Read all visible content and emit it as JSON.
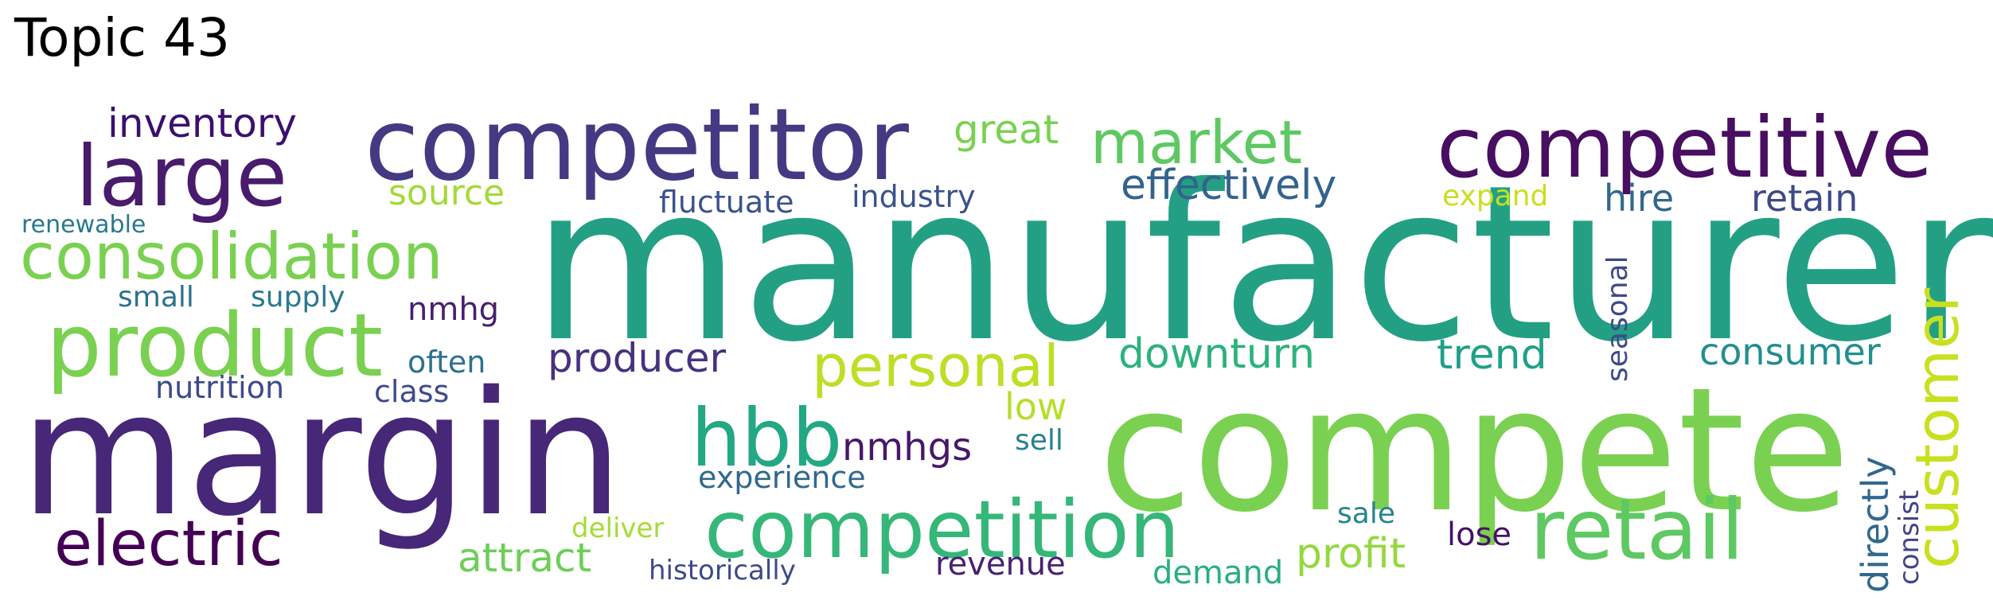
{
  "title": "Topic 43",
  "words": [
    {
      "text": "manufacturer",
      "color": "#23a083"
    },
    {
      "text": "compete",
      "color": "#7ad151"
    },
    {
      "text": "margin",
      "color": "#472778"
    },
    {
      "text": "competitor",
      "color": "#443a83"
    },
    {
      "text": "competitive",
      "color": "#470e61"
    },
    {
      "text": "product",
      "color": "#7ad151"
    },
    {
      "text": "large",
      "color": "#481b6d"
    },
    {
      "text": "consolidation",
      "color": "#7ad151"
    },
    {
      "text": "competition",
      "color": "#35b779"
    },
    {
      "text": "retail",
      "color": "#5ec962"
    },
    {
      "text": "customer",
      "color": "#c8e020"
    },
    {
      "text": "electric",
      "color": "#440154"
    },
    {
      "text": "hbb",
      "color": "#22a884"
    },
    {
      "text": "market",
      "color": "#5ec962"
    },
    {
      "text": "personal",
      "color": "#bddf26"
    },
    {
      "text": "inventory",
      "color": "#3b0f70"
    },
    {
      "text": "effectively",
      "color": "#33638d"
    },
    {
      "text": "great",
      "color": "#7ad151"
    },
    {
      "text": "downturn",
      "color": "#2db27d"
    },
    {
      "text": "trend",
      "color": "#1fa088"
    },
    {
      "text": "consumer",
      "color": "#218f8d"
    },
    {
      "text": "producer",
      "color": "#46327e"
    },
    {
      "text": "nmhgs",
      "color": "#481769"
    },
    {
      "text": "attract",
      "color": "#6ece58"
    },
    {
      "text": "profit",
      "color": "#95d840"
    },
    {
      "text": "retain",
      "color": "#3e4989"
    },
    {
      "text": "hire",
      "color": "#31688e"
    },
    {
      "text": "source",
      "color": "#a2da37"
    },
    {
      "text": "directly",
      "color": "#31688e"
    },
    {
      "text": "fluctuate",
      "color": "#3b528b"
    },
    {
      "text": "industry",
      "color": "#3b528b"
    },
    {
      "text": "seasonal",
      "color": "#3e4a89"
    },
    {
      "text": "nmhg",
      "color": "#481f70"
    },
    {
      "text": "demand",
      "color": "#29af7f"
    },
    {
      "text": "experience",
      "color": "#31688e"
    },
    {
      "text": "revenue",
      "color": "#482173"
    },
    {
      "text": "low",
      "color": "#b5de2b"
    },
    {
      "text": "nutrition",
      "color": "#3e4a89"
    },
    {
      "text": "small",
      "color": "#2c728e"
    },
    {
      "text": "supply",
      "color": "#2a788e"
    },
    {
      "text": "often",
      "color": "#2c728e"
    },
    {
      "text": "class",
      "color": "#3e4a89"
    },
    {
      "text": "sell",
      "color": "#26828e"
    },
    {
      "text": "lose",
      "color": "#471164"
    },
    {
      "text": "sale",
      "color": "#25848e"
    },
    {
      "text": "expand",
      "color": "#c8e020"
    },
    {
      "text": "consist",
      "color": "#414487"
    },
    {
      "text": "renewable",
      "color": "#2a788e"
    },
    {
      "text": "deliver",
      "color": "#a5db36"
    },
    {
      "text": "historically",
      "color": "#3e4a89"
    }
  ]
}
